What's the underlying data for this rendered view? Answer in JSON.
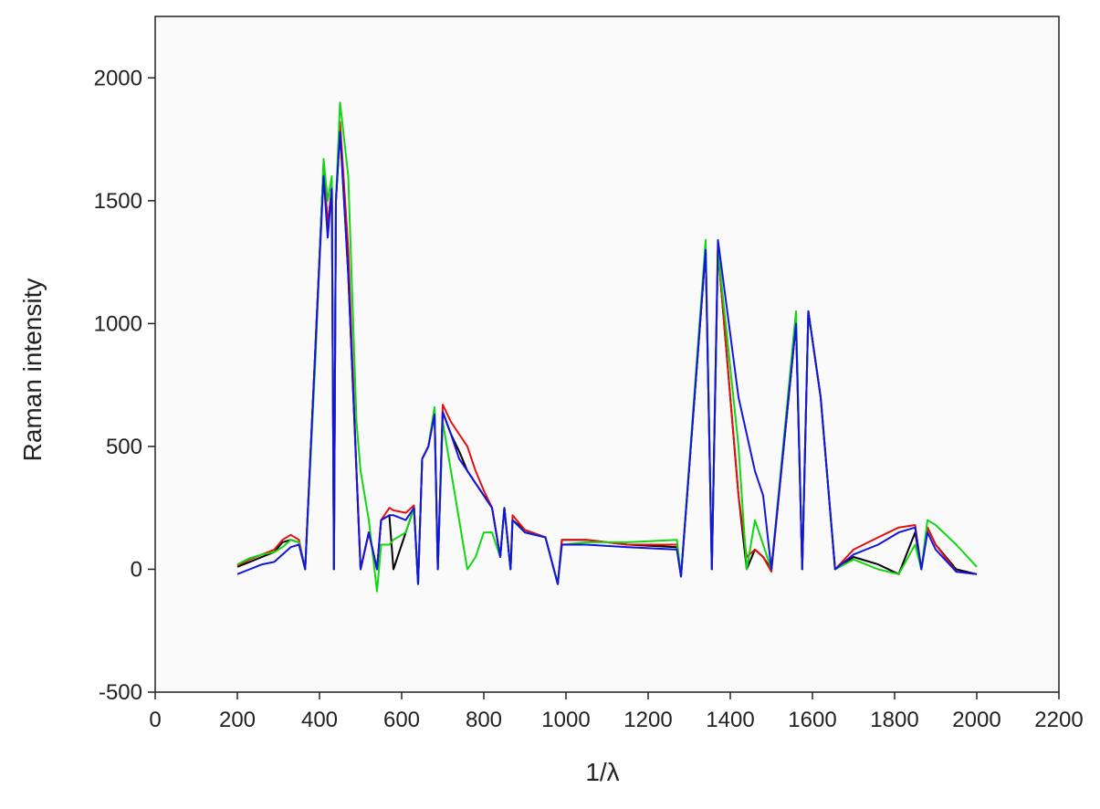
{
  "chart_data": {
    "type": "line",
    "x_label": "1/λ",
    "y_label": "Raman intensity",
    "xlim": [
      0,
      2200
    ],
    "ylim": [
      -500,
      2250
    ],
    "xticks": [
      0,
      200,
      400,
      600,
      800,
      1000,
      1200,
      1400,
      1600,
      1800,
      2000,
      2200
    ],
    "yticks": [
      -500,
      0,
      500,
      1000,
      1500,
      2000
    ],
    "x": [
      200,
      230,
      260,
      290,
      310,
      330,
      350,
      365,
      390,
      410,
      420,
      430,
      435,
      440,
      450,
      470,
      490,
      500,
      520,
      540,
      550,
      570,
      580,
      610,
      630,
      640,
      650,
      665,
      680,
      688,
      700,
      720,
      740,
      760,
      780,
      800,
      820,
      840,
      850,
      865,
      870,
      900,
      950,
      980,
      990,
      1050,
      1150,
      1270,
      1280,
      1340,
      1355,
      1370,
      1420,
      1440,
      1460,
      1480,
      1500,
      1560,
      1575,
      1590,
      1620,
      1655,
      1700,
      1760,
      1810,
      1850,
      1865,
      1880,
      1900,
      1950,
      2000
    ],
    "series": [
      {
        "color": "#000000",
        "values": [
          10,
          30,
          50,
          70,
          110,
          120,
          110,
          0,
          900,
          1650,
          1400,
          1550,
          0,
          1500,
          1800,
          1200,
          400,
          0,
          150,
          0,
          200,
          220,
          0,
          150,
          250,
          -60,
          450,
          500,
          650,
          0,
          640,
          550,
          480,
          400,
          350,
          300,
          250,
          50,
          250,
          0,
          200,
          160,
          130,
          -60,
          120,
          120,
          100,
          90,
          -30,
          1300,
          0,
          1300,
          300,
          0,
          80,
          50,
          0,
          1000,
          0,
          1050,
          700,
          0,
          50,
          20,
          -20,
          150,
          0,
          170,
          100,
          0,
          -20
        ]
      },
      {
        "color": "#e41010",
        "values": [
          15,
          40,
          60,
          80,
          120,
          140,
          120,
          0,
          900,
          1650,
          1400,
          1550,
          0,
          1500,
          1820,
          1300,
          400,
          0,
          150,
          0,
          200,
          250,
          240,
          230,
          260,
          -60,
          450,
          500,
          650,
          0,
          670,
          600,
          550,
          500,
          400,
          320,
          250,
          50,
          250,
          0,
          220,
          160,
          130,
          -60,
          120,
          120,
          100,
          100,
          -30,
          1300,
          0,
          1300,
          300,
          50,
          80,
          50,
          -10,
          1000,
          0,
          1050,
          700,
          0,
          80,
          130,
          170,
          180,
          0,
          170,
          100,
          -10,
          -20
        ]
      },
      {
        "color": "#10d810",
        "values": [
          20,
          45,
          60,
          70,
          90,
          120,
          110,
          0,
          850,
          1670,
          1500,
          1600,
          0,
          1500,
          1900,
          1600,
          600,
          400,
          200,
          -90,
          100,
          100,
          120,
          150,
          250,
          -60,
          450,
          500,
          660,
          0,
          600,
          400,
          200,
          0,
          50,
          150,
          150,
          50,
          250,
          0,
          200,
          150,
          130,
          -60,
          100,
          110,
          110,
          120,
          -30,
          1340,
          0,
          1300,
          500,
          0,
          200,
          100,
          0,
          1050,
          0,
          1050,
          700,
          0,
          40,
          0,
          -20,
          100,
          0,
          200,
          180,
          100,
          10
        ]
      },
      {
        "color": "#1414e0",
        "values": [
          -20,
          0,
          20,
          30,
          60,
          90,
          100,
          0,
          900,
          1600,
          1350,
          1550,
          0,
          1500,
          1780,
          1200,
          400,
          0,
          150,
          0,
          200,
          220,
          220,
          200,
          250,
          -60,
          450,
          500,
          630,
          0,
          640,
          550,
          450,
          400,
          350,
          300,
          250,
          50,
          250,
          0,
          200,
          150,
          130,
          -60,
          100,
          100,
          90,
          80,
          -30,
          1300,
          0,
          1340,
          700,
          550,
          400,
          300,
          0,
          1000,
          0,
          1050,
          700,
          0,
          60,
          100,
          150,
          170,
          0,
          150,
          80,
          -10,
          -20
        ]
      }
    ]
  }
}
